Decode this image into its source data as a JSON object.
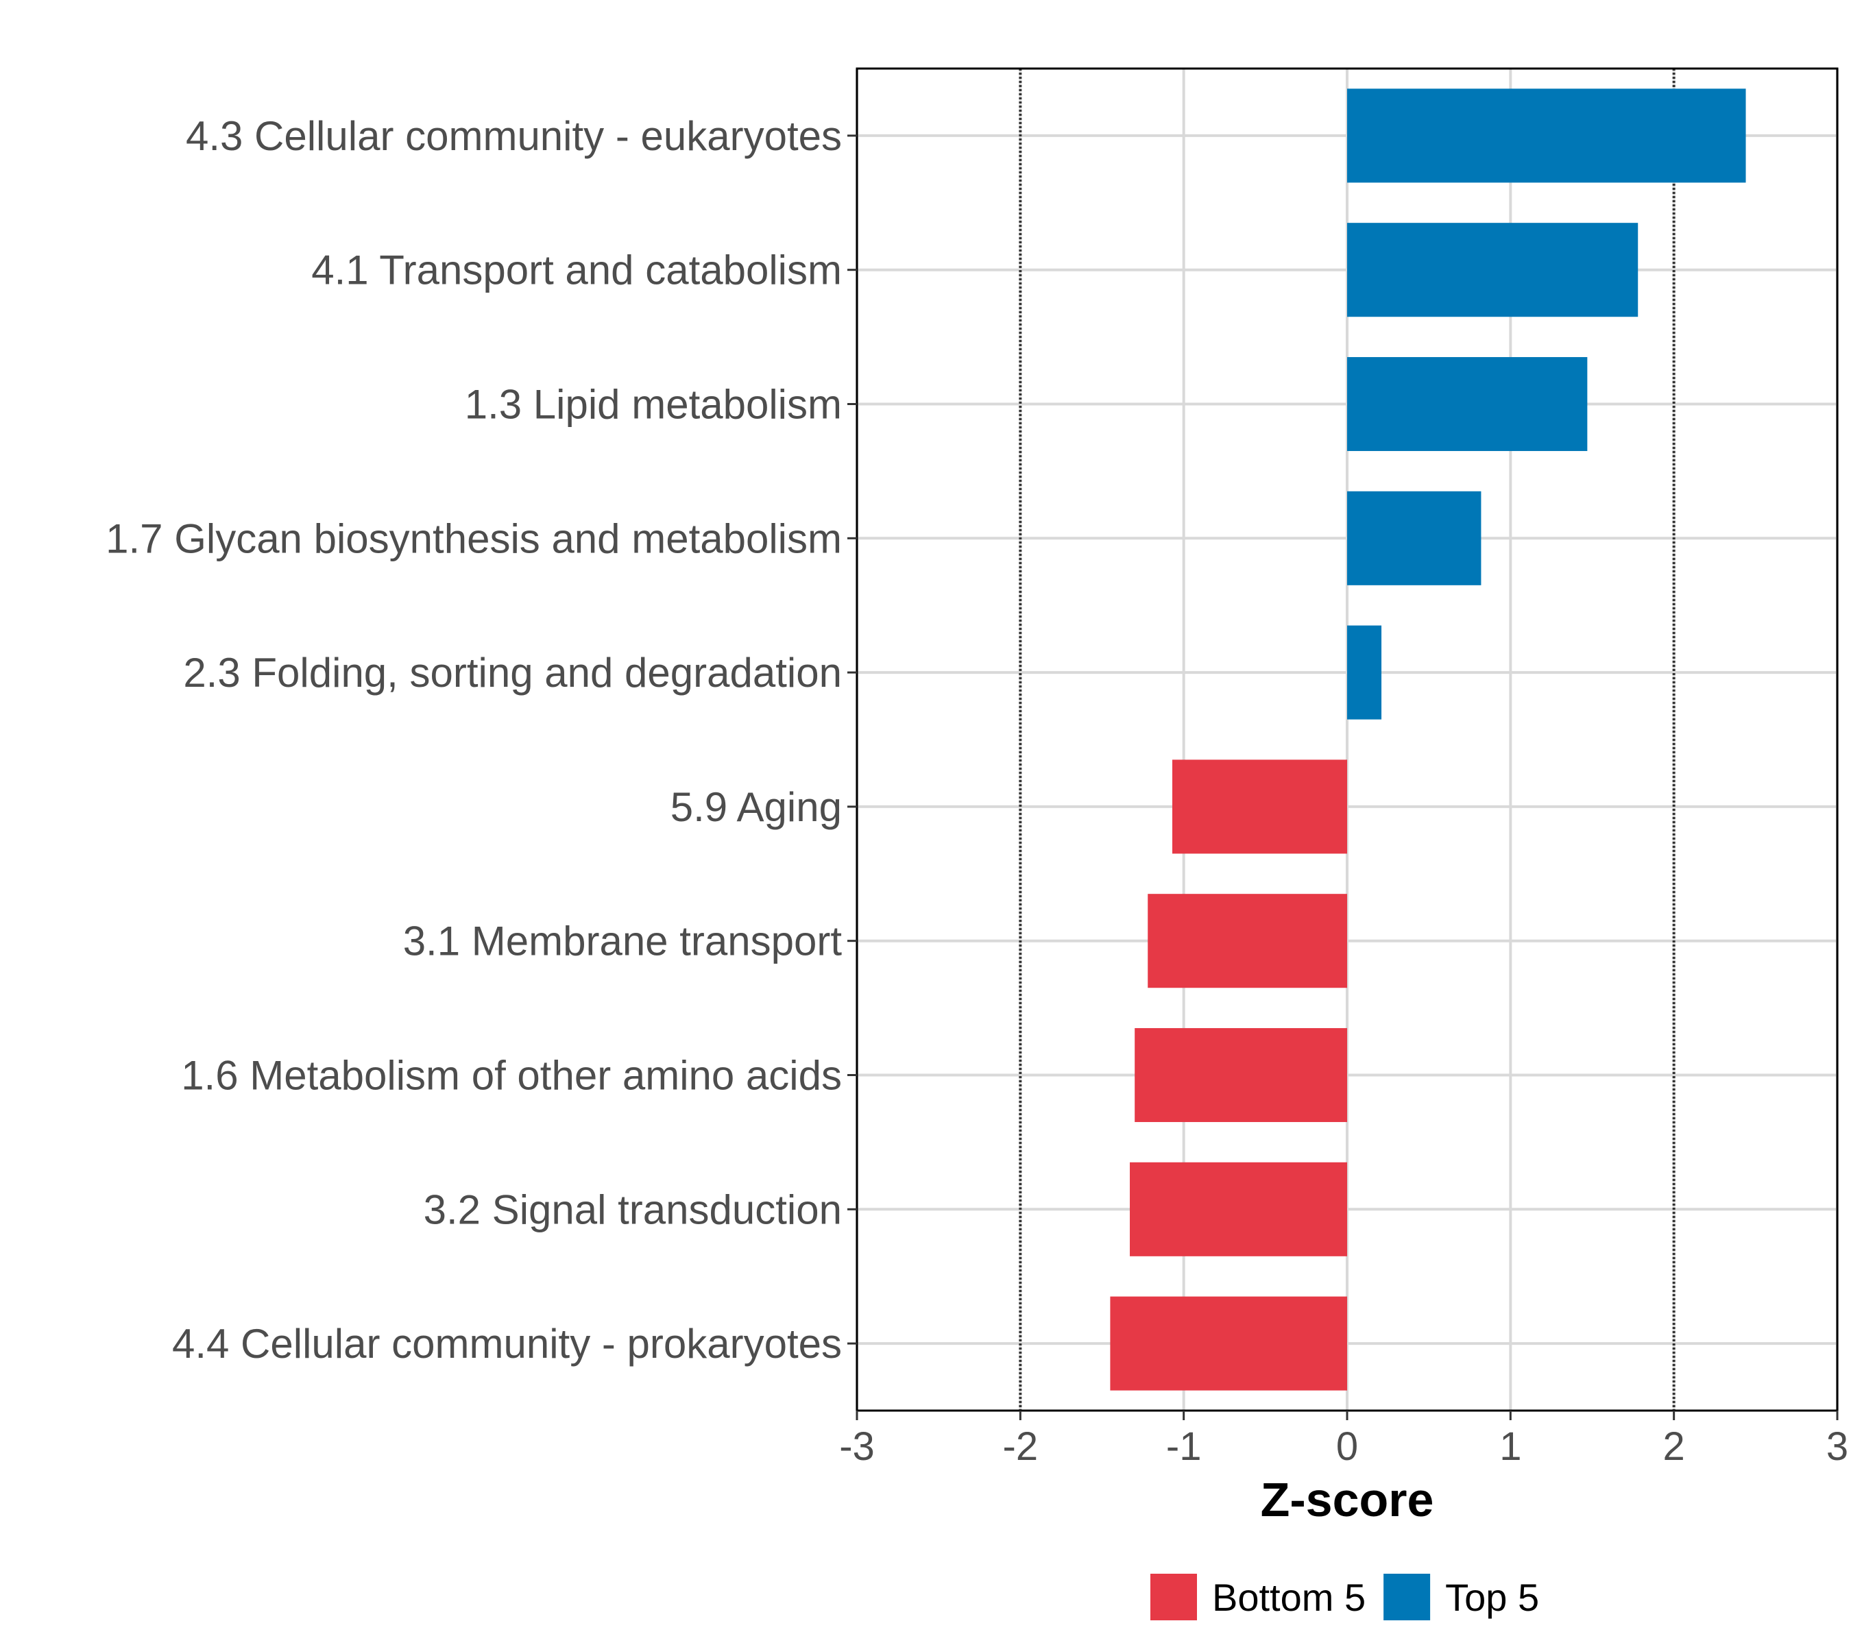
{
  "chart_data": {
    "type": "bar",
    "orientation": "horizontal",
    "title": "",
    "xlabel": "Z-score",
    "ylabel": "",
    "xlim": [
      -3,
      3
    ],
    "xticks": [
      -3,
      -2,
      -1,
      0,
      1,
      2,
      3
    ],
    "reference_lines": [
      -2,
      2
    ],
    "grid": true,
    "categories": [
      "4.3 Cellular community - eukaryotes",
      "4.1 Transport and catabolism",
      "1.3 Lipid metabolism",
      "1.7 Glycan biosynthesis and metabolism",
      "2.3 Folding, sorting and degradation",
      "5.9 Aging",
      "3.1 Membrane transport",
      "1.6 Metabolism of other amino acids",
      "3.2 Signal transduction",
      "4.4 Cellular community - prokaryotes"
    ],
    "values": [
      2.44,
      1.78,
      1.47,
      0.82,
      0.21,
      -1.07,
      -1.22,
      -1.3,
      -1.33,
      -1.45
    ],
    "groups": [
      "Top 5",
      "Top 5",
      "Top 5",
      "Top 5",
      "Top 5",
      "Bottom 5",
      "Bottom 5",
      "Bottom 5",
      "Bottom 5",
      "Bottom 5"
    ],
    "legend": {
      "position": "bottom",
      "items": [
        {
          "label": "Bottom 5",
          "color": "#e63946"
        },
        {
          "label": "Top 5",
          "color": "#0077b6"
        }
      ]
    },
    "colors": {
      "Top 5": "#0077b6",
      "Bottom 5": "#e63946"
    }
  }
}
